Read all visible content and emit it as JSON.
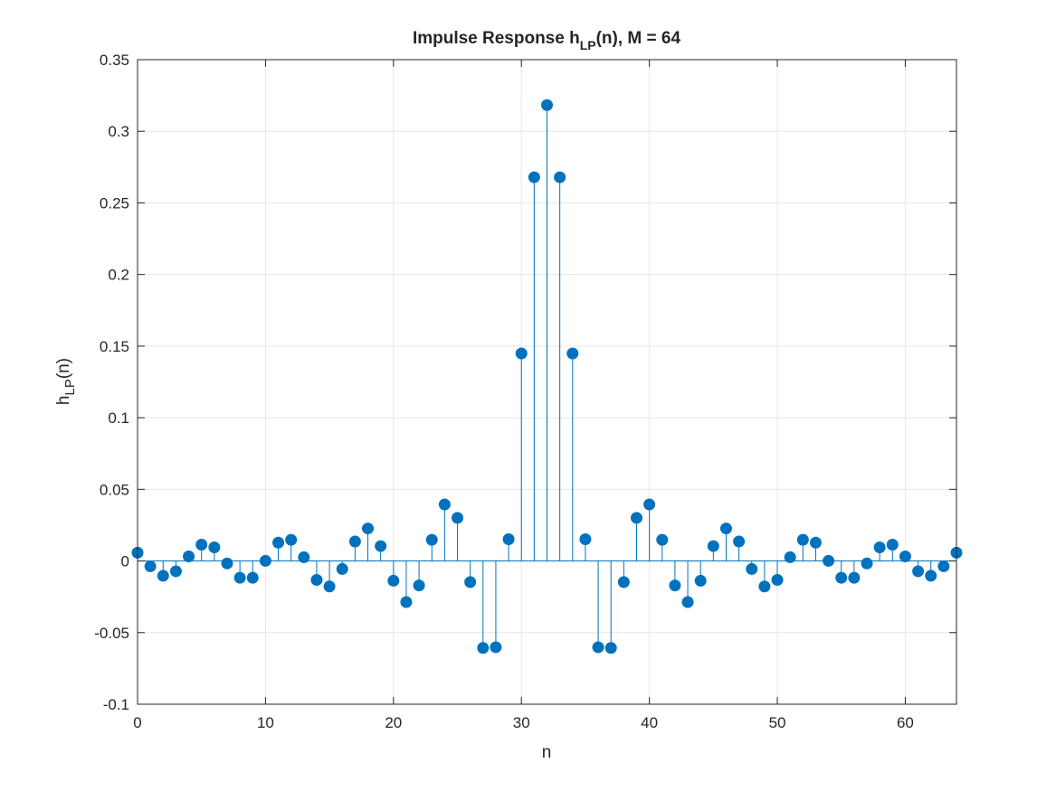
{
  "chart_data": {
    "type": "stem",
    "title": "Impulse Response h",
    "title_sub": "LP",
    "title_suffix": "(n), M = 64",
    "xlabel": "n",
    "ylabel_main": "h",
    "ylabel_sub": "LP",
    "ylabel_suffix": "(n)",
    "xlim": [
      0,
      64
    ],
    "ylim": [
      -0.1,
      0.35
    ],
    "xticks": [
      0,
      10,
      20,
      30,
      40,
      50,
      60
    ],
    "xtick_labels": [
      "0",
      "10",
      "20",
      "30",
      "40",
      "50",
      "60"
    ],
    "yticks": [
      -0.1,
      -0.05,
      0,
      0.05,
      0.1,
      0.15,
      0.2,
      0.25,
      0.3,
      0.35
    ],
    "ytick_labels": [
      "-0.1",
      "-0.05",
      "0",
      "0.05",
      "0.1",
      "0.15",
      "0.2",
      "0.25",
      "0.3",
      "0.35"
    ],
    "grid": true,
    "color": "#0072BD",
    "x": [
      0,
      1,
      2,
      3,
      4,
      5,
      6,
      7,
      8,
      9,
      10,
      11,
      12,
      13,
      14,
      15,
      16,
      17,
      18,
      19,
      20,
      21,
      22,
      23,
      24,
      25,
      26,
      27,
      28,
      29,
      30,
      31,
      32,
      33,
      34,
      35,
      36,
      37,
      38,
      39,
      40,
      41,
      42,
      43,
      44,
      45,
      46,
      47,
      48,
      49,
      50,
      51,
      52,
      53,
      54,
      55,
      56,
      57,
      58,
      59,
      60,
      61,
      62,
      63,
      64
    ],
    "values": [
      0.0058,
      -0.0037,
      -0.0103,
      -0.0072,
      0.0032,
      0.0114,
      0.0095,
      -0.0017,
      -0.0117,
      -0.0117,
      0.0001,
      0.0128,
      0.0148,
      0.0026,
      -0.0132,
      -0.0178,
      -0.0056,
      0.0136,
      0.0227,
      0.0104,
      -0.0138,
      -0.0287,
      -0.0171,
      0.0148,
      0.0395,
      0.0301,
      -0.0147,
      -0.0607,
      -0.0602,
      0.0152,
      0.1449,
      0.2679,
      0.3183,
      0.2679,
      0.1449,
      0.0152,
      -0.0602,
      -0.0607,
      -0.0147,
      0.0301,
      0.0395,
      0.0148,
      -0.0171,
      -0.0287,
      -0.0138,
      0.0104,
      0.0227,
      0.0136,
      -0.0056,
      -0.0178,
      -0.0132,
      0.0026,
      0.0148,
      0.0128,
      0.0001,
      -0.0117,
      -0.0117,
      -0.0017,
      0.0095,
      0.0114,
      0.0032,
      -0.0072,
      -0.0103,
      -0.0037,
      0.0058
    ]
  }
}
